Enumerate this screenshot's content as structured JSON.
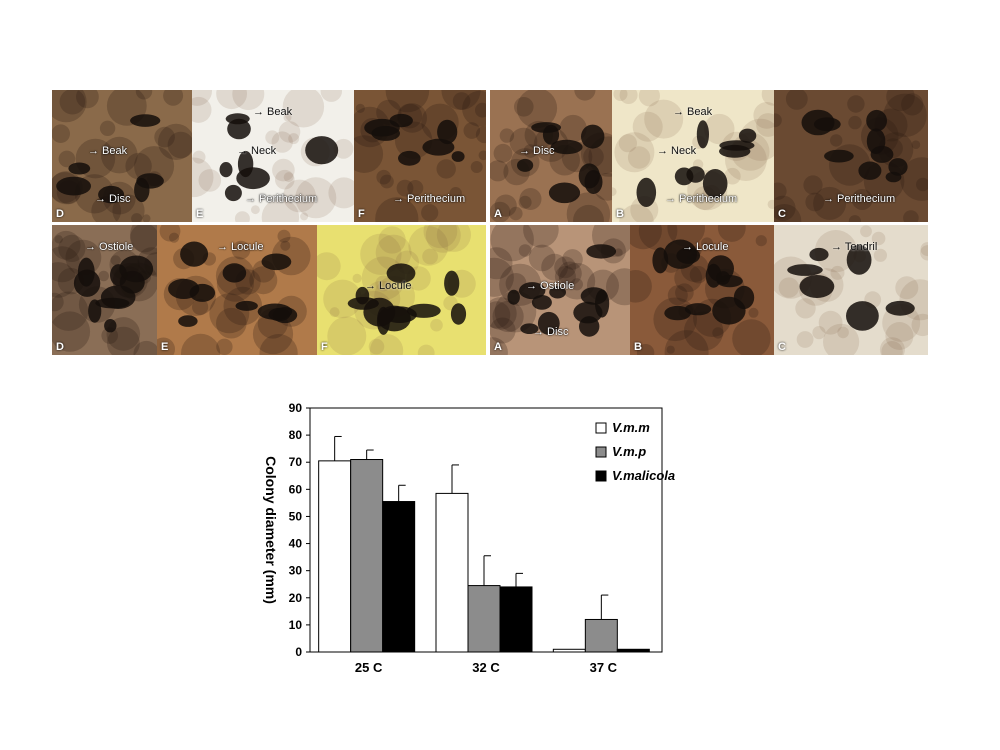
{
  "photo_panels": [
    {
      "id": "top-left-D",
      "letter": "D",
      "bg": "#8a6a4a",
      "labels": [
        {
          "text": "Beak",
          "pos": "mid"
        },
        {
          "text": "Disc",
          "pos": "low"
        }
      ]
    },
    {
      "id": "top-left-E",
      "letter": "E",
      "bg": "#f2f0ea",
      "labels": [
        {
          "text": "Beak",
          "pos": "top"
        },
        {
          "text": "Neck",
          "pos": "mid"
        },
        {
          "text": "Perithecium",
          "pos": "low"
        }
      ]
    },
    {
      "id": "top-left-F",
      "letter": "F",
      "bg": "#7a5536",
      "labels": [
        {
          "text": "Perithecium",
          "pos": "low"
        }
      ]
    },
    {
      "id": "top-right-A",
      "letter": "A",
      "bg": "#9a7252",
      "labels": [
        {
          "text": "Disc",
          "pos": "mid"
        }
      ]
    },
    {
      "id": "top-right-B",
      "letter": "B",
      "bg": "#efe6c8",
      "labels": [
        {
          "text": "Beak",
          "pos": "top"
        },
        {
          "text": "Neck",
          "pos": "mid"
        },
        {
          "text": "Perithecium",
          "pos": "low"
        }
      ]
    },
    {
      "id": "top-right-C",
      "letter": "C",
      "bg": "#6a4a32",
      "labels": [
        {
          "text": "Perithecium",
          "pos": "low"
        }
      ]
    },
    {
      "id": "bottom-left-D",
      "letter": "D",
      "bg": "#8a6e56",
      "labels": [
        {
          "text": "Ostiole",
          "pos": "top"
        }
      ]
    },
    {
      "id": "bottom-left-E",
      "letter": "E",
      "bg": "#b07a4a",
      "labels": [
        {
          "text": "Locule",
          "pos": "top"
        }
      ]
    },
    {
      "id": "bottom-left-F",
      "letter": "F",
      "bg": "#e8e070",
      "labels": [
        {
          "text": "Locule",
          "pos": "mid"
        }
      ]
    },
    {
      "id": "bottom-right-A",
      "letter": "A",
      "bg": "#b89478",
      "labels": [
        {
          "text": "Ostiole",
          "pos": "mid"
        },
        {
          "text": "Disc",
          "pos": "low"
        }
      ]
    },
    {
      "id": "bottom-right-B",
      "letter": "B",
      "bg": "#8a5a3a",
      "labels": [
        {
          "text": "Locule",
          "pos": "top"
        }
      ]
    },
    {
      "id": "bottom-right-C",
      "letter": "C",
      "bg": "#e4dccc",
      "labels": [
        {
          "text": "Tendril",
          "pos": "top"
        }
      ]
    }
  ],
  "chart_data": {
    "type": "bar",
    "ylabel": "Colony diameter (mm)",
    "xlabel": "",
    "categories": [
      "25 C",
      "32 C",
      "37 C"
    ],
    "ylim": [
      0,
      90
    ],
    "yticks": [
      0,
      10,
      20,
      30,
      40,
      50,
      60,
      70,
      80,
      90
    ],
    "legend_position": "top-right",
    "grid": false,
    "series": [
      {
        "name": "V.m.m",
        "color": "#ffffff",
        "values": [
          70.5,
          58.5,
          1
        ],
        "errors": [
          9,
          10.5,
          0
        ]
      },
      {
        "name": "V.m.p",
        "color": "#8c8c8c",
        "values": [
          71,
          24.5,
          12
        ],
        "errors": [
          3.5,
          11,
          9
        ]
      },
      {
        "name": "V.malicola",
        "color": "#000000",
        "values": [
          55.5,
          24,
          1
        ],
        "errors": [
          6,
          5,
          0
        ]
      }
    ]
  }
}
